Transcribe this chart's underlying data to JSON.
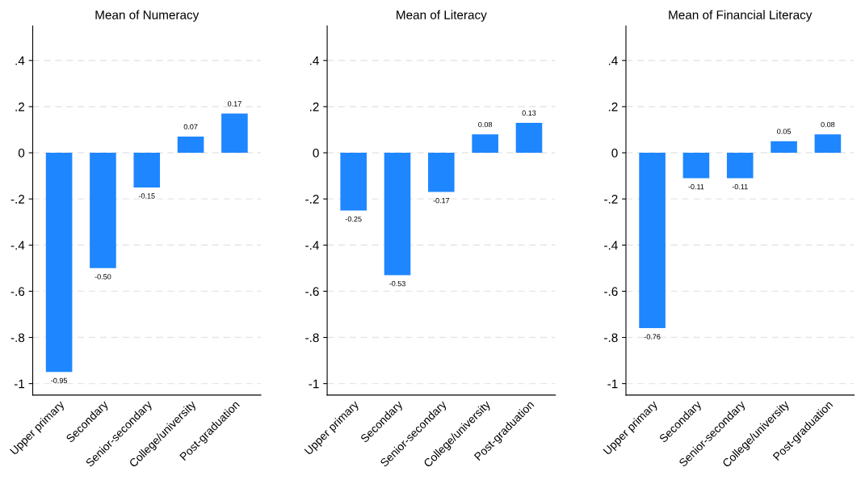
{
  "chart_data": [
    {
      "type": "bar",
      "title": "Mean of Numeracy",
      "categories": [
        "Upper primary",
        "Secondary",
        "Senior-secondary",
        "College/university",
        "Post-graduation"
      ],
      "values": [
        -0.95,
        -0.5,
        -0.15,
        0.07,
        0.17
      ],
      "value_labels": [
        "-0.95",
        "-0.50",
        "-0.15",
        "0.07",
        "0.17"
      ],
      "color": "#1e86ff",
      "ylim": [
        -1.05,
        0.55
      ],
      "yticks": [
        {
          "value": -1,
          "label": "-1"
        },
        {
          "value": -0.8,
          "label": "-.8"
        },
        {
          "value": -0.6,
          "label": "-.6"
        },
        {
          "value": -0.4,
          "label": "-.4"
        },
        {
          "value": -0.2,
          "label": "-.2"
        },
        0,
        {
          "value": 0.2,
          "label": ".2"
        },
        {
          "value": 0.4,
          "label": ".4"
        }
      ],
      "grid": "y"
    },
    {
      "type": "bar",
      "title": "Mean of Literacy",
      "categories": [
        "Upper primary",
        "Secondary",
        "Senior-secondary",
        "College/university",
        "Post-graduation"
      ],
      "values": [
        -0.25,
        -0.53,
        -0.17,
        0.08,
        0.13
      ],
      "value_labels": [
        "-0.25",
        "-0.53",
        "-0.17",
        "0.08",
        "0.13"
      ],
      "color": "#1e86ff",
      "ylim": [
        -1.05,
        0.55
      ],
      "yticks": [
        {
          "value": -1,
          "label": "-1"
        },
        {
          "value": -0.8,
          "label": "-.8"
        },
        {
          "value": -0.6,
          "label": "-.6"
        },
        {
          "value": -0.4,
          "label": "-.4"
        },
        {
          "value": -0.2,
          "label": "-.2"
        },
        0,
        {
          "value": 0.2,
          "label": ".2"
        },
        {
          "value": 0.4,
          "label": ".4"
        }
      ],
      "grid": "y"
    },
    {
      "type": "bar",
      "title": "Mean of Financial Literacy",
      "categories": [
        "Upper primary",
        "Secondary",
        "Senior-secondary",
        "College/university",
        "Post-graduation"
      ],
      "values": [
        -0.76,
        -0.11,
        -0.11,
        0.05,
        0.08
      ],
      "value_labels": [
        "-0.76",
        "-0.11",
        "-0.11",
        "0.05",
        "0.08"
      ],
      "color": "#1e86ff",
      "ylim": [
        -1.05,
        0.55
      ],
      "yticks": [
        {
          "value": -1,
          "label": "-1"
        },
        {
          "value": -0.8,
          "label": "-.8"
        },
        {
          "value": -0.6,
          "label": "-.6"
        },
        {
          "value": -0.4,
          "label": "-.4"
        },
        {
          "value": -0.2,
          "label": "-.2"
        },
        0,
        {
          "value": 0.2,
          "label": ".2"
        },
        {
          "value": 0.4,
          "label": ".4"
        }
      ],
      "grid": "y"
    }
  ]
}
